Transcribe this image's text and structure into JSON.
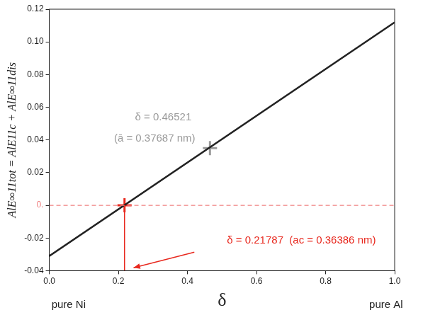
{
  "chart_data": {
    "type": "line",
    "x_label": "δ",
    "y_label": "AlE∞11tot = AlE11c + AlE∞11dis",
    "xlim": [
      0,
      1
    ],
    "ylim": [
      -0.04,
      0.12
    ],
    "xticks": [
      {
        "value": 0,
        "label": "0.0"
      },
      0.2,
      0.4,
      0.6,
      0.8,
      {
        "value": 1,
        "label": "1.0"
      }
    ],
    "yticks": [
      -0.04,
      -0.02,
      {
        "value": 0,
        "label": "0."
      },
      0.02,
      0.04,
      0.06,
      0.08,
      {
        "value": 0.1,
        "label": "0.10"
      },
      0.12
    ],
    "grid": false,
    "series": [
      {
        "x": [
          0,
          1
        ],
        "values": [
          0,
          0
        ],
        "color": "#f08080",
        "line_style": "dashed"
      },
      {
        "x": [
          0.21787,
          0.21787
        ],
        "values": [
          -0.04,
          0
        ],
        "color": "#e8281e",
        "line_style": "solid"
      },
      {
        "x": [
          0,
          1
        ],
        "values": [
          -0.031,
          0.112
        ],
        "color": "#222222",
        "line_style": "solid"
      },
      {
        "x": [
          0.46521
        ],
        "values": [
          0.035
        ],
        "color": "#9a9a9a",
        "marker": "cross"
      },
      {
        "x": [
          0.21787
        ],
        "values": [
          0
        ],
        "color": "#e8281e",
        "marker": "cross"
      }
    ],
    "annotations": [
      {
        "text": "δ = 0.46521",
        "at": [
          0.33,
          0.054
        ],
        "color": "#9a9a9a"
      },
      {
        "text": "(ā = 0.37687 nm)",
        "at": [
          0.305,
          0.041
        ],
        "color": "#9a9a9a"
      },
      {
        "text": "δ = 0.21787  (ac = 0.36386 nm)",
        "at": [
          0.73,
          -0.0215
        ],
        "color": "#e8281e",
        "arrow_from": [
          0.42,
          -0.0287
        ],
        "arrow_to": [
          0.244,
          -0.0382
        ]
      },
      {
        "text": "pure Ni",
        "at": [
          0.056,
          -0.061
        ],
        "color": "#222222"
      },
      {
        "text": "pure Al",
        "at": [
          0.975,
          -0.061
        ],
        "color": "#222222"
      }
    ]
  }
}
